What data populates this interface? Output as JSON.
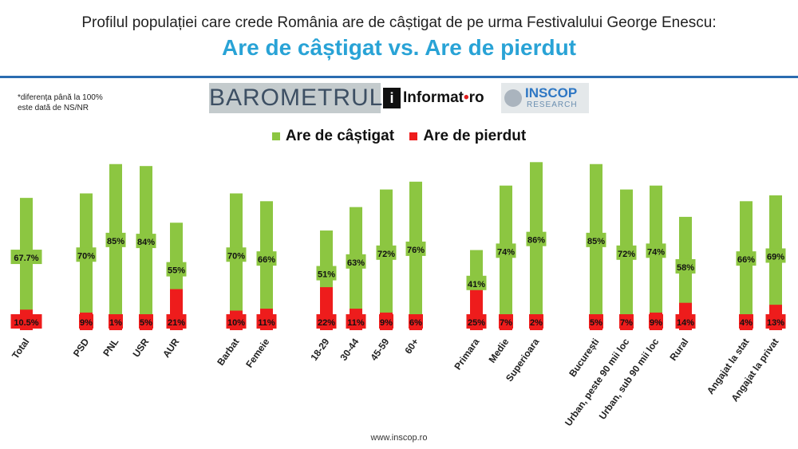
{
  "header": {
    "title": "Profilul populației care crede România are de câștigat de pe urma Festivalului George Enescu:",
    "subtitle": "Are de câștigat vs. Are de pierdut"
  },
  "note": {
    "line1": "*diferența până la 100%",
    "line2": "este dată de NS/NR"
  },
  "logos": {
    "barometrul": "BAROMETRUL",
    "informat_main": "Informat",
    "informat_dot": "•",
    "informat_tld": "ro",
    "inscop": "INSCOP",
    "research": "RESEARCH"
  },
  "footer": "www.inscop.ro",
  "colors": {
    "gain": "#8cc641",
    "loss": "#ee1c1c"
  },
  "chart_data": {
    "type": "bar",
    "categories": [
      "Total",
      "PSD",
      "PNL",
      "USR",
      "AUR",
      "Barbat",
      "Femeie",
      "18-29",
      "30-44",
      "45-59",
      "60+",
      "Primara",
      "Medie",
      "Superioara",
      "București",
      "Urban, peste 90 mii loc",
      "Urban, sub 90 mii loc",
      "Rural",
      "Angajat la stat",
      "Angajat la privat"
    ],
    "groups": [
      [
        0
      ],
      [
        1,
        2,
        3,
        4
      ],
      [
        5,
        6
      ],
      [
        7,
        8,
        9,
        10
      ],
      [
        11,
        12,
        13
      ],
      [
        14,
        15,
        16,
        17
      ],
      [
        18,
        19
      ]
    ],
    "series": [
      {
        "name": "Are de câștigat",
        "values": [
          67.7,
          70,
          85,
          84,
          55,
          70,
          66,
          51,
          63,
          72,
          76,
          41,
          74,
          86,
          85,
          72,
          74,
          58,
          66,
          69
        ],
        "labels": [
          "67.7%",
          "70%",
          "85%",
          "84%",
          "55%",
          "70%",
          "66%",
          "51%",
          "63%",
          "72%",
          "76%",
          "41%",
          "74%",
          "86%",
          "85%",
          "72%",
          "74%",
          "58%",
          "66%",
          "69%"
        ]
      },
      {
        "name": "Are de pierdut",
        "values": [
          10.5,
          9,
          1,
          5,
          21,
          10,
          11,
          22,
          11,
          9,
          6,
          25,
          7,
          2,
          5,
          7,
          9,
          14,
          4,
          13
        ],
        "labels": [
          "10.5%",
          "9%",
          "1%",
          "5%",
          "21%",
          "10%",
          "11%",
          "22%",
          "11%",
          "9%",
          "6%",
          "25%",
          "7%",
          "2%",
          "5%",
          "7%",
          "9%",
          "14%",
          "4%",
          "13%"
        ]
      }
    ],
    "legend_position": "top-center",
    "grid": false
  }
}
